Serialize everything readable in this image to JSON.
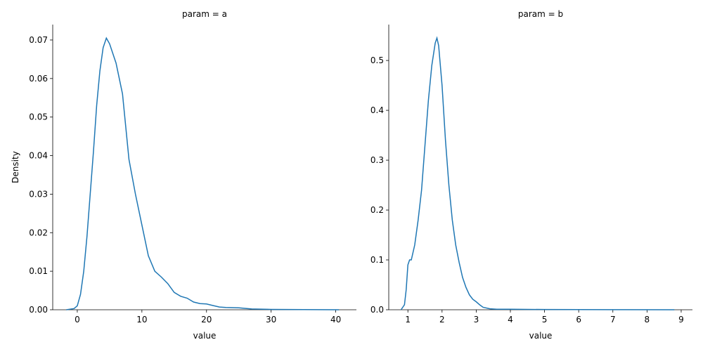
{
  "chart_data": [
    {
      "type": "line",
      "title": "param = a",
      "xlabel": "value",
      "ylabel": "Density",
      "x": [
        -1.7,
        -0.5,
        0,
        0.5,
        1,
        1.5,
        2,
        2.5,
        3,
        3.5,
        4,
        4.5,
        5,
        6,
        7,
        8,
        9,
        10,
        11,
        12,
        13,
        14,
        15,
        16,
        17,
        18,
        19,
        20,
        21,
        22,
        23,
        25,
        27,
        30,
        35,
        40.5
      ],
      "series": [
        {
          "color": "#1f77b4",
          "values": [
            0,
            0.0003,
            0.001,
            0.004,
            0.01,
            0.019,
            0.03,
            0.041,
            0.053,
            0.062,
            0.068,
            0.0705,
            0.069,
            0.064,
            0.056,
            0.039,
            0.03,
            0.022,
            0.014,
            0.01,
            0.0085,
            0.0068,
            0.0045,
            0.0035,
            0.003,
            0.002,
            0.0016,
            0.0015,
            0.0011,
            0.0007,
            0.0006,
            0.0005,
            0.0002,
            0.0001,
            5e-05,
            0
          ]
        }
      ],
      "xlim": [
        -3.8,
        43.2
      ],
      "ylim": [
        0,
        0.074
      ],
      "xticks": [
        0,
        10,
        20,
        30,
        40
      ],
      "yticks": [
        {
          "value": 0,
          "label": "0.00"
        },
        {
          "value": 0.01,
          "label": "0.01"
        },
        {
          "value": 0.02,
          "label": "0.02"
        },
        {
          "value": 0.03,
          "label": "0.03"
        },
        {
          "value": 0.04,
          "label": "0.04"
        },
        {
          "value": 0.05,
          "label": "0.05"
        },
        {
          "value": 0.06,
          "label": "0.06"
        },
        {
          "value": 0.07,
          "label": "0.07"
        }
      ]
    },
    {
      "type": "line",
      "title": "param = b",
      "xlabel": "value",
      "x": [
        0.8,
        0.9,
        0.95,
        1.0,
        1.05,
        1.1,
        1.2,
        1.3,
        1.4,
        1.5,
        1.6,
        1.7,
        1.8,
        1.85,
        1.9,
        2.0,
        2.1,
        2.2,
        2.3,
        2.4,
        2.5,
        2.6,
        2.7,
        2.8,
        2.9,
        3.0,
        3.1,
        3.2,
        3.4,
        3.6,
        4,
        5,
        7,
        8.8
      ],
      "series": [
        {
          "color": "#1f77b4",
          "values": [
            0,
            0.01,
            0.04,
            0.09,
            0.1,
            0.1,
            0.13,
            0.18,
            0.24,
            0.33,
            0.42,
            0.49,
            0.535,
            0.545,
            0.53,
            0.45,
            0.34,
            0.25,
            0.18,
            0.13,
            0.095,
            0.065,
            0.045,
            0.03,
            0.021,
            0.016,
            0.01,
            0.005,
            0.002,
            0.001,
            0.001,
            0.0005,
            0.0002,
            0
          ]
        }
      ],
      "xlim": [
        0.44,
        9.33
      ],
      "ylim": [
        0,
        0.572
      ],
      "xticks": [
        1,
        2,
        3,
        4,
        5,
        6,
        7,
        8,
        9
      ],
      "yticks": [
        {
          "value": 0,
          "label": "0.0"
        },
        {
          "value": 0.1,
          "label": "0.1"
        },
        {
          "value": 0.2,
          "label": "0.2"
        },
        {
          "value": 0.3,
          "label": "0.3"
        },
        {
          "value": 0.4,
          "label": "0.4"
        },
        {
          "value": 0.5,
          "label": "0.5"
        }
      ]
    }
  ]
}
